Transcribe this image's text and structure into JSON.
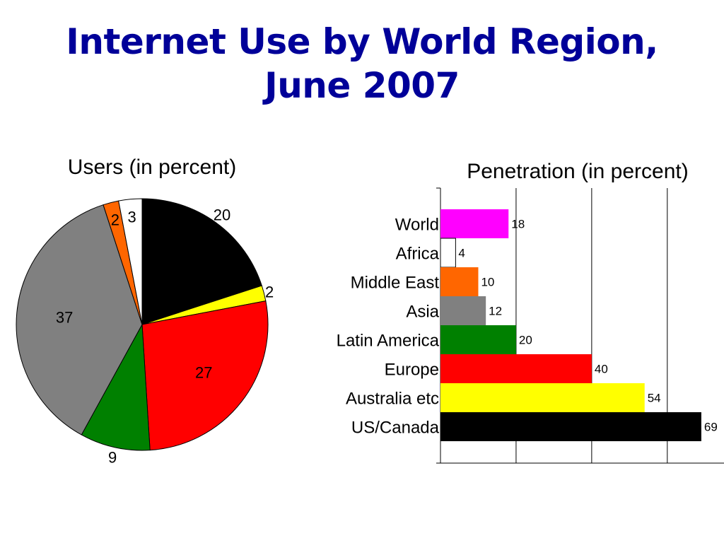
{
  "title_line1": "Internet Use by World Region,",
  "title_line2": "June 2007",
  "chart_data": [
    {
      "type": "pie",
      "title": "Users (in percent)",
      "slices": [
        {
          "label": "US/Canada",
          "value": 20,
          "color": "#000000"
        },
        {
          "label": "Australia etc",
          "value": 2,
          "color": "#ffff00"
        },
        {
          "label": "Europe",
          "value": 27,
          "color": "#ff0000"
        },
        {
          "label": "Latin America",
          "value": 9,
          "color": "#008000"
        },
        {
          "label": "Asia",
          "value": 37,
          "color": "#808080"
        },
        {
          "label": "Middle East",
          "value": 2,
          "color": "#ff6600"
        },
        {
          "label": "Africa",
          "value": 3,
          "color": "#ffffff"
        }
      ]
    },
    {
      "type": "bar",
      "orientation": "horizontal",
      "title": "Penetration (in percent)",
      "categories": [
        "World",
        "Africa",
        "Middle East",
        "Asia",
        "Latin America",
        "Europe",
        "Australia etc",
        "US/Canada"
      ],
      "values": [
        18,
        4,
        10,
        12,
        20,
        40,
        54,
        69
      ],
      "colors": [
        "#ff00ff",
        "#ffffff",
        "#ff6600",
        "#808080",
        "#008000",
        "#ff0000",
        "#ffff00",
        "#000000"
      ],
      "xlim": [
        0,
        75
      ],
      "grid": true
    }
  ]
}
